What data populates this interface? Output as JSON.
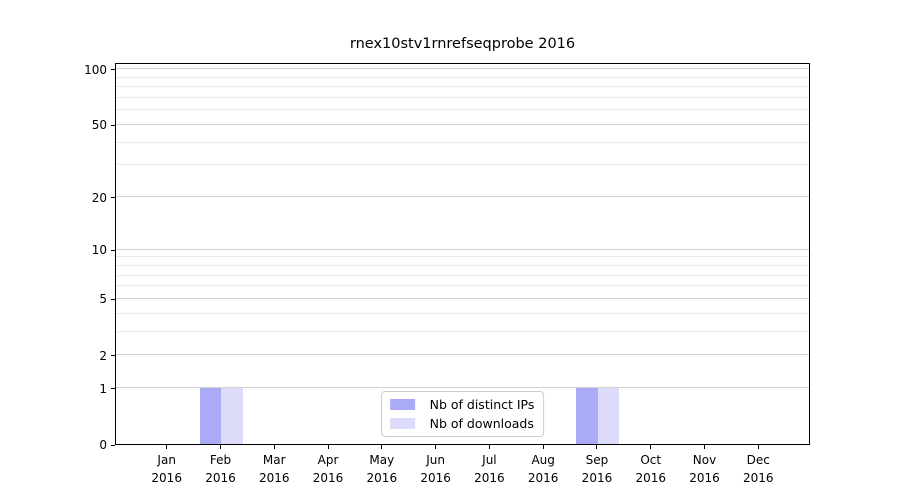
{
  "chart_data": {
    "type": "bar",
    "title": "rnex10stv1rnrefseqprobe 2016",
    "categories": [
      "Jan 2016",
      "Feb 2016",
      "Mar 2016",
      "Apr 2016",
      "May 2016",
      "Jun 2016",
      "Jul 2016",
      "Aug 2016",
      "Sep 2016",
      "Oct 2016",
      "Nov 2016",
      "Dec 2016"
    ],
    "months": [
      "Jan",
      "Feb",
      "Mar",
      "Apr",
      "May",
      "Jun",
      "Jul",
      "Aug",
      "Sep",
      "Oct",
      "Nov",
      "Dec"
    ],
    "year": "2016",
    "series": [
      {
        "name": "Nb of distinct IPs",
        "color": "#abaaf7",
        "values": [
          0,
          1,
          0,
          0,
          0,
          0,
          0,
          0,
          1,
          0,
          0,
          0
        ]
      },
      {
        "name": "Nb of downloads",
        "color": "#dcdbf9",
        "values": [
          0,
          1,
          0,
          0,
          0,
          0,
          0,
          0,
          1,
          0,
          0,
          0
        ]
      }
    ],
    "xlabel": "",
    "ylabel": "",
    "yscale": "log1p",
    "ylim": [
      0,
      109
    ],
    "yticks": [
      0,
      1,
      2,
      5,
      10,
      20,
      50,
      100
    ],
    "minor_yticks": [
      3,
      4,
      6,
      7,
      8,
      9,
      30,
      40,
      60,
      70,
      80,
      90
    ],
    "grid": "on",
    "legend_position": "lower center inside plot",
    "colors": {
      "frame": "#000000",
      "grid_major": "#d2d2d2",
      "grid_minor": "#ebebeb",
      "legend_border": "#cccccc"
    }
  }
}
